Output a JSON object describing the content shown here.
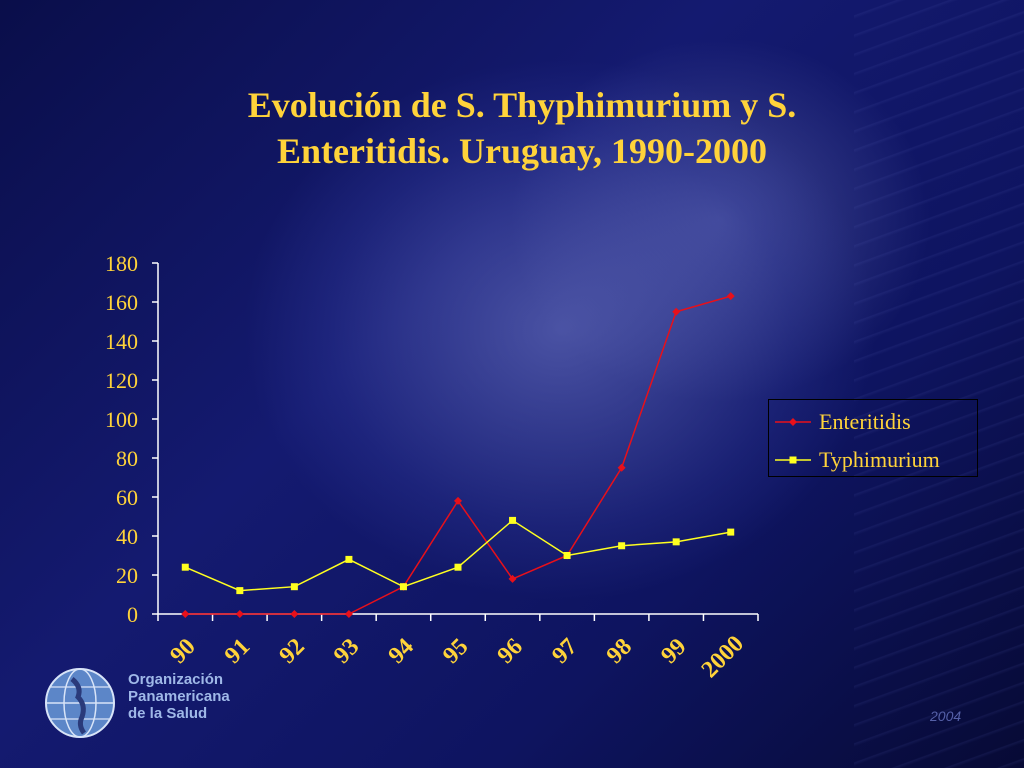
{
  "title_lines": [
    "Evolución de S. Thyphimurium y S.",
    "Enteritidis.  Uruguay, 1990-2000"
  ],
  "chart_data": {
    "type": "line",
    "title": "Evolución de S. Thyphimurium y S. Enteritidis.  Uruguay, 1990-2000",
    "categories": [
      "90",
      "91",
      "92",
      "93",
      "94",
      "95",
      "96",
      "97",
      "98",
      "99",
      "2000"
    ],
    "series": [
      {
        "name": "Enteritidis",
        "color": "#e8101a",
        "marker": "diamond",
        "values": [
          0,
          0,
          0,
          0,
          14,
          58,
          18,
          30,
          75,
          155,
          163
        ]
      },
      {
        "name": "Typhimurium",
        "color": "#ffff20",
        "marker": "square",
        "values": [
          24,
          12,
          14,
          28,
          14,
          24,
          48,
          30,
          35,
          37,
          42
        ]
      }
    ],
    "ylim": [
      0,
      180
    ],
    "yticks": [
      0,
      20,
      40,
      60,
      80,
      100,
      120,
      140,
      160,
      180
    ],
    "xlabel": "",
    "ylabel": "",
    "grid": false,
    "legend_position": "right"
  },
  "colors": {
    "text": "#ffd33a",
    "axis": "#ffffff"
  },
  "logo": {
    "lines": [
      "Organización",
      "Panamericana",
      "de la Salud"
    ],
    "icon": "globe-icon"
  },
  "corner_mark": "2004"
}
